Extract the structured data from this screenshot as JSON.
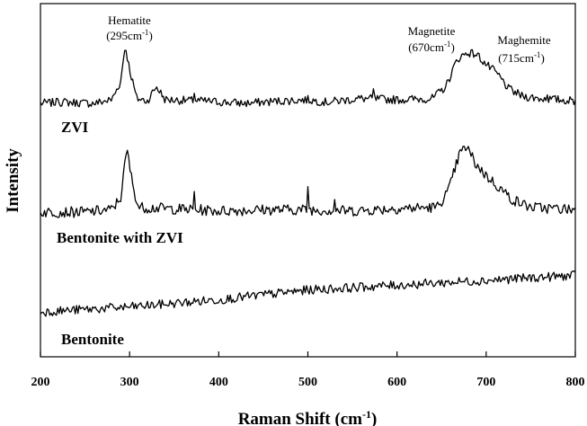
{
  "chart_data": {
    "type": "line",
    "xlabel": "Raman Shift (cm",
    "xlabel_sup": "-1",
    "xlabel_close": ")",
    "ylabel": "Intensity",
    "xlim": [
      200,
      800
    ],
    "xticks": [
      "200",
      "300",
      "400",
      "500",
      "600",
      "700",
      "800"
    ],
    "y_ticks_shown": false,
    "grid": false,
    "series": [
      {
        "name": "ZVI",
        "noise": 3.5,
        "points": [
          [
            200,
            0
          ],
          [
            225,
            1
          ],
          [
            260,
            0
          ],
          [
            280,
            3
          ],
          [
            290,
            18
          ],
          [
            295,
            48
          ],
          [
            300,
            28
          ],
          [
            308,
            4
          ],
          [
            320,
            2
          ],
          [
            330,
            14
          ],
          [
            340,
            3
          ],
          [
            380,
            2
          ],
          [
            430,
            0
          ],
          [
            470,
            2
          ],
          [
            500,
            3
          ],
          [
            520,
            1
          ],
          [
            560,
            4
          ],
          [
            600,
            3
          ],
          [
            640,
            4
          ],
          [
            655,
            14
          ],
          [
            665,
            32
          ],
          [
            670,
            38
          ],
          [
            680,
            42
          ],
          [
            690,
            40
          ],
          [
            700,
            32
          ],
          [
            710,
            26
          ],
          [
            715,
            22
          ],
          [
            725,
            12
          ],
          [
            740,
            6
          ],
          [
            760,
            4
          ],
          [
            800,
            2
          ]
        ],
        "spikes": [
          [
            220,
            6
          ],
          [
            372,
            8
          ],
          [
            574,
            7
          ],
          [
            768,
            6
          ]
        ]
      },
      {
        "name": "Bentonite with ZVI",
        "noise": 4.5,
        "points": [
          [
            200,
            0
          ],
          [
            250,
            0
          ],
          [
            280,
            2
          ],
          [
            290,
            12
          ],
          [
            297,
            52
          ],
          [
            303,
            24
          ],
          [
            310,
            4
          ],
          [
            340,
            3
          ],
          [
            400,
            1
          ],
          [
            450,
            2
          ],
          [
            500,
            2
          ],
          [
            550,
            1
          ],
          [
            600,
            3
          ],
          [
            645,
            4
          ],
          [
            658,
            18
          ],
          [
            670,
            48
          ],
          [
            678,
            54
          ],
          [
            688,
            40
          ],
          [
            700,
            30
          ],
          [
            715,
            20
          ],
          [
            730,
            10
          ],
          [
            750,
            4
          ],
          [
            800,
            2
          ]
        ],
        "spikes": [
          [
            372,
            14
          ],
          [
            500,
            20
          ],
          [
            530,
            10
          ]
        ]
      },
      {
        "name": "Bentonite",
        "noise": 3.8,
        "points": [
          [
            200,
            0
          ],
          [
            300,
            4
          ],
          [
            400,
            10
          ],
          [
            500,
            18
          ],
          [
            600,
            22
          ],
          [
            700,
            26
          ],
          [
            800,
            30
          ]
        ],
        "spikes": []
      }
    ],
    "annotations": [
      {
        "line1": "Hematite",
        "line2_pre": "(295cm",
        "line2_sup": "-1",
        "line2_post": ")"
      },
      {
        "line1": "Magnetite",
        "line2_pre": "(670cm",
        "line2_sup": "-1",
        "line2_post": ")"
      },
      {
        "line1": "Maghemite",
        "line2_pre": "(715cm",
        "line2_sup": "-1",
        "line2_post": ")"
      }
    ]
  }
}
